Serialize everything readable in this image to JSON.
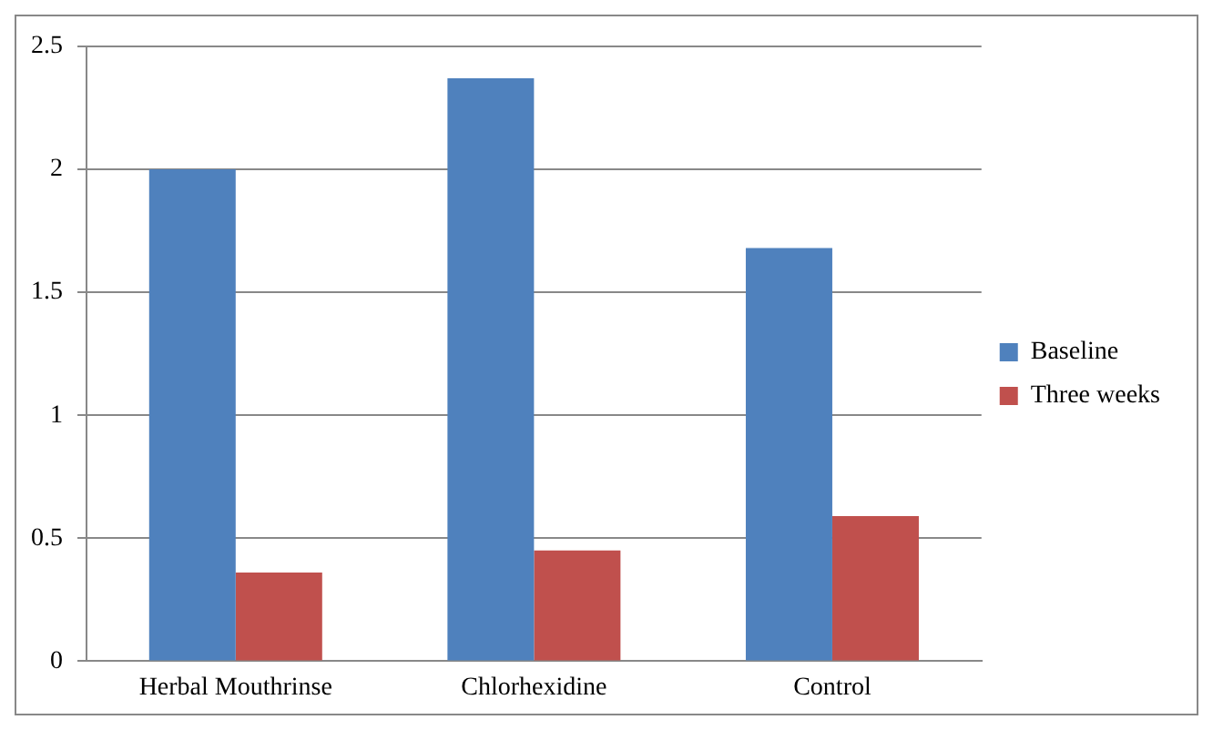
{
  "chart_data": {
    "type": "bar",
    "categories": [
      "Herbal Mouthrinse",
      "Chlorhexidine",
      "Control"
    ],
    "series": [
      {
        "name": "Baseline",
        "color": "#4f81bd",
        "values": [
          2.0,
          2.37,
          1.68
        ]
      },
      {
        "name": "Three weeks",
        "color": "#c0504d",
        "values": [
          0.36,
          0.45,
          0.59
        ]
      }
    ],
    "ylim": [
      0,
      2.5
    ],
    "yticks": [
      0,
      0.5,
      1,
      1.5,
      2,
      2.5
    ],
    "grid": "y",
    "legend": "right"
  }
}
